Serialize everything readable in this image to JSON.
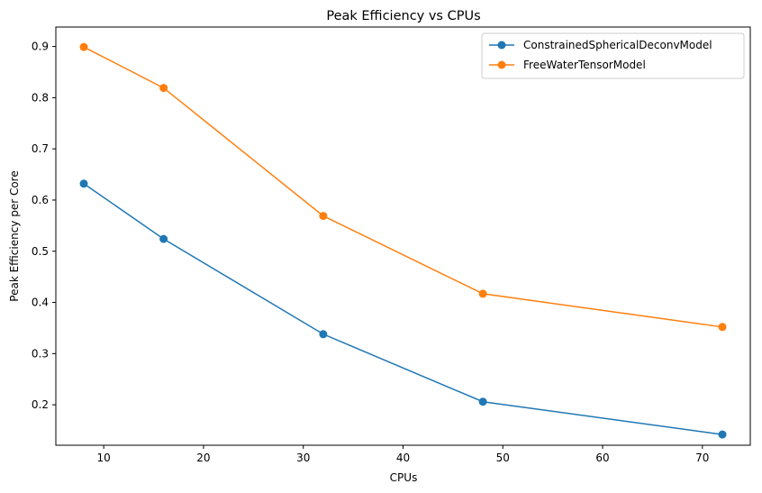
{
  "chart_data": {
    "type": "line",
    "title": "Peak Efficiency vs CPUs",
    "xlabel": "CPUs",
    "ylabel": "Peak Efficiency per Core",
    "x": [
      8,
      16,
      32,
      48,
      72
    ],
    "xlim": [
      5.2,
      74.8
    ],
    "ylim": [
      0.121,
      0.938
    ],
    "xticks": [
      10,
      20,
      30,
      40,
      50,
      60,
      70
    ],
    "yticks": [
      0.2,
      0.3,
      0.4,
      0.5,
      0.6,
      0.7,
      0.8,
      0.9
    ],
    "grid": false,
    "legend_position": "top-right",
    "series": [
      {
        "name": "ConstrainedSphericalDeconvModel",
        "color": "#1f77b4",
        "values": [
          0.632,
          0.524,
          0.338,
          0.206,
          0.142
        ]
      },
      {
        "name": "FreeWaterTensorModel",
        "color": "#ff7f0e",
        "values": [
          0.899,
          0.819,
          0.569,
          0.417,
          0.352
        ]
      }
    ]
  }
}
